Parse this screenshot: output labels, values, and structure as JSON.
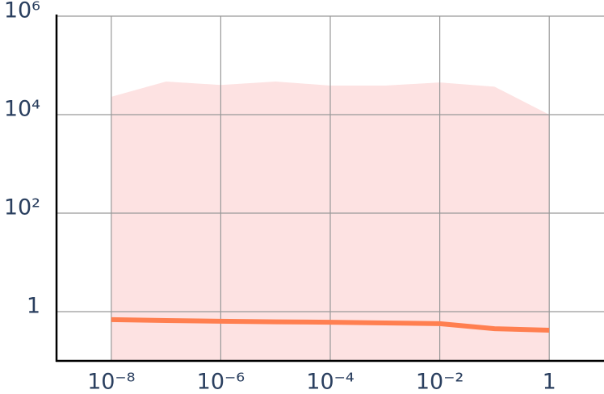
{
  "chart_data": {
    "type": "line",
    "x": [
      1e-08,
      1e-07,
      1e-06,
      1e-05,
      0.0001,
      0.001,
      0.01,
      0.1,
      1
    ],
    "series": [
      {
        "color": "#ff7f50",
        "values": [
          0.69,
          0.66,
          0.64,
          0.62,
          0.61,
          0.59,
          0.57,
          0.45,
          0.42
        ]
      }
    ],
    "band": {
      "color": "#fde2e2",
      "lower": [
        0.1,
        0.1,
        0.1,
        0.1,
        0.1,
        0.1,
        0.1,
        0.1,
        0.1
      ],
      "upper": [
        23000,
        47000,
        40000,
        47000,
        39000,
        39000,
        45000,
        37000,
        10000
      ]
    },
    "xlim": [
      1e-09,
      10
    ],
    "ylim": [
      0.1,
      1000000
    ],
    "xticks": [
      {
        "value": 1e-08,
        "label": "10⁻⁸"
      },
      {
        "value": 1e-06,
        "label": "10⁻⁶"
      },
      {
        "value": 0.0001,
        "label": "10⁻⁴"
      },
      {
        "value": 0.01,
        "label": "10⁻²"
      },
      1
    ],
    "yticks": [
      1,
      {
        "value": 100,
        "label": "10²"
      },
      {
        "value": 10000,
        "label": "10⁴"
      },
      {
        "value": 1000000,
        "label": "10⁶"
      }
    ],
    "log_x": true,
    "log_y": true,
    "grid": true
  }
}
